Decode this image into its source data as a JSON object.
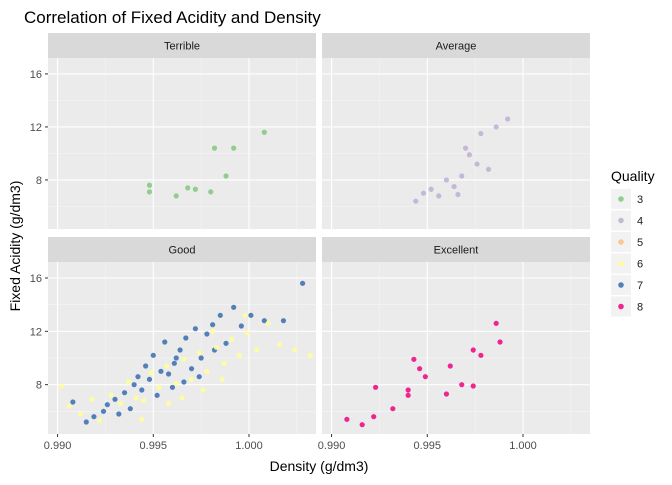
{
  "chart_data": {
    "type": "scatter",
    "title": "Correlation of Fixed Acidity and Density",
    "xlabel": "Density (g/dm3)",
    "ylabel": "Fixed Acidity (g/dm3)",
    "xlim": [
      0.9895,
      1.0035
    ],
    "ylim": [
      4.3,
      17.2
    ],
    "x_ticks": [
      0.99,
      0.995,
      1.0
    ],
    "x_tick_labels": [
      "0.990",
      "0.995",
      "1.000"
    ],
    "y_ticks": [
      8,
      12,
      16
    ],
    "y_tick_labels": [
      "8",
      "12",
      "16"
    ],
    "grid": true,
    "legend": {
      "title": "Quality",
      "position": "right",
      "entries": [
        {
          "label": "3",
          "color": "#7fc97f"
        },
        {
          "label": "4",
          "color": "#beaed4"
        },
        {
          "label": "5",
          "color": "#fdc086"
        },
        {
          "label": "6",
          "color": "#ffff99"
        },
        {
          "label": "7",
          "color": "#386cb0"
        },
        {
          "label": "8",
          "color": "#f0027f"
        }
      ]
    },
    "facets": [
      {
        "label": "Terrible",
        "series": [
          {
            "quality": "3",
            "points": [
              [
                0.9948,
                7.6
              ],
              [
                0.9948,
                7.1
              ],
              [
                0.9962,
                6.8
              ],
              [
                0.9968,
                7.4
              ],
              [
                0.9972,
                7.3
              ],
              [
                0.998,
                7.1
              ],
              [
                0.9982,
                10.4
              ],
              [
                0.9988,
                8.3
              ],
              [
                0.9992,
                10.4
              ],
              [
                1.0008,
                11.6
              ]
            ]
          }
        ]
      },
      {
        "label": "Average",
        "series": [
          {
            "quality": "4",
            "points": [
              [
                0.9948,
                7.0
              ],
              [
                0.9956,
                6.8
              ],
              [
                0.9964,
                7.5
              ],
              [
                0.9968,
                8.3
              ],
              [
                0.9972,
                9.9
              ],
              [
                0.9978,
                11.5
              ],
              [
                0.9982,
                8.8
              ],
              [
                0.9986,
                12.0
              ],
              [
                0.9966,
                6.9
              ],
              [
                0.9952,
                7.3
              ],
              [
                0.996,
                8.0
              ],
              [
                0.9976,
                9.2
              ],
              [
                0.9992,
                12.6
              ],
              [
                0.9944,
                6.4
              ],
              [
                0.997,
                10.4
              ]
            ]
          }
        ]
      },
      {
        "label": "Good",
        "series": [
          {
            "quality": "7",
            "points": [
              [
                0.9908,
                6.7
              ],
              [
                0.9915,
                5.2
              ],
              [
                0.9919,
                5.6
              ],
              [
                0.9924,
                6.0
              ],
              [
                0.993,
                6.9
              ],
              [
                0.9935,
                7.4
              ],
              [
                0.994,
                8.0
              ],
              [
                0.9942,
                8.6
              ],
              [
                0.9946,
                9.4
              ],
              [
                0.995,
                10.2
              ],
              [
                0.9952,
                7.2
              ],
              [
                0.9956,
                11.2
              ],
              [
                0.9958,
                8.8
              ],
              [
                0.9961,
                9.6
              ],
              [
                0.9964,
                10.6
              ],
              [
                0.9967,
                11.5
              ],
              [
                0.997,
                9.2
              ],
              [
                0.9972,
                12.2
              ],
              [
                0.9975,
                10.0
              ],
              [
                0.9978,
                11.8
              ],
              [
                0.9981,
                12.5
              ],
              [
                0.9985,
                13.2
              ],
              [
                0.9988,
                11.1
              ],
              [
                0.9992,
                13.8
              ],
              [
                0.9996,
                12.4
              ],
              [
                1.0001,
                13.2
              ],
              [
                1.0008,
                12.8
              ],
              [
                1.0018,
                12.8
              ],
              [
                1.0028,
                15.6
              ],
              [
                0.9938,
                6.2
              ],
              [
                0.9944,
                7.6
              ],
              [
                0.9948,
                8.4
              ],
              [
                0.9954,
                9.0
              ],
              [
                0.996,
                7.8
              ],
              [
                0.9966,
                8.2
              ],
              [
                0.9932,
                5.8
              ],
              [
                0.9926,
                6.5
              ],
              [
                0.9982,
                10.6
              ],
              [
                0.9974,
                8.6
              ],
              [
                0.9962,
                10.0
              ]
            ]
          },
          {
            "quality": "6",
            "points": [
              [
                0.9902,
                7.9
              ],
              [
                0.9906,
                6.4
              ],
              [
                0.9912,
                5.8
              ],
              [
                0.9918,
                6.9
              ],
              [
                0.9922,
                5.3
              ],
              [
                0.9928,
                7.2
              ],
              [
                0.9933,
                6.6
              ],
              [
                0.9937,
                8.2
              ],
              [
                0.9941,
                7.0
              ],
              [
                0.9945,
                6.8
              ],
              [
                0.9949,
                8.9
              ],
              [
                0.9953,
                7.8
              ],
              [
                0.9957,
                9.4
              ],
              [
                0.9962,
                8.1
              ],
              [
                0.9966,
                9.9
              ],
              [
                0.997,
                8.4
              ],
              [
                0.9974,
                10.4
              ],
              [
                0.9978,
                9.0
              ],
              [
                0.9983,
                10.8
              ],
              [
                0.9987,
                9.6
              ],
              [
                0.9991,
                11.4
              ],
              [
                0.9995,
                10.2
              ],
              [
                0.9999,
                11.9
              ],
              [
                1.0004,
                10.6
              ],
              [
                1.001,
                12.6
              ],
              [
                1.0016,
                11.0
              ],
              [
                1.0024,
                10.6
              ],
              [
                1.0032,
                10.2
              ],
              [
                0.9965,
                7.0
              ],
              [
                0.9976,
                7.6
              ],
              [
                0.9986,
                8.4
              ],
              [
                0.9958,
                6.6
              ],
              [
                0.9944,
                5.4
              ],
              [
                0.9998,
                13.2
              ],
              [
                0.9981,
                12.0
              ]
            ]
          }
        ]
      },
      {
        "label": "Excellent",
        "series": [
          {
            "quality": "8",
            "points": [
              [
                0.9908,
                5.4
              ],
              [
                0.9916,
                5.0
              ],
              [
                0.9922,
                5.6
              ],
              [
                0.9923,
                7.8
              ],
              [
                0.9932,
                6.2
              ],
              [
                0.994,
                7.6
              ],
              [
                0.994,
                7.2
              ],
              [
                0.9943,
                9.9
              ],
              [
                0.9946,
                9.2
              ],
              [
                0.9949,
                8.6
              ],
              [
                0.996,
                7.3
              ],
              [
                0.9962,
                9.4
              ],
              [
                0.9968,
                8.0
              ],
              [
                0.9974,
                7.9
              ],
              [
                0.9974,
                10.6
              ],
              [
                0.9978,
                10.2
              ],
              [
                0.9986,
                12.6
              ],
              [
                0.9988,
                11.2
              ]
            ]
          }
        ]
      }
    ]
  }
}
